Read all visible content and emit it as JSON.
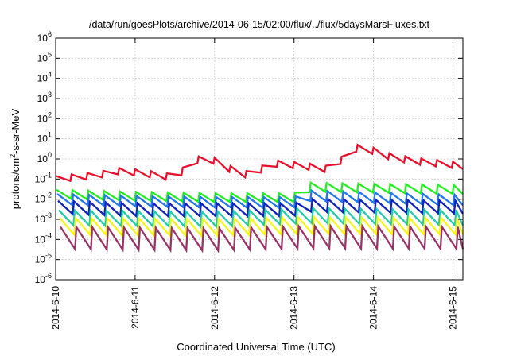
{
  "chart_data": {
    "type": "line",
    "title": "/data/run/goesPlots/archive/2014-06-15/02:00/flux/../flux/5daysMarsFluxes.txt",
    "xlabel": "Coordinated Universal Time (UTC)",
    "ylabel": {
      "prefix": "protons/cm",
      "exp": "2",
      "suffix": "-s-sr-MeV"
    },
    "x_range": [
      "2014-06-10",
      "2014-06-15 03:00"
    ],
    "x_ticks": [
      "2014-6-10",
      "2014-6-11",
      "2014-6-12",
      "2014-6-13",
      "2014-6-14",
      "2014-6-15"
    ],
    "y_scale": "log",
    "y_range": [
      1e-06,
      1000000.0
    ],
    "y_ticks": [
      {
        "base": "10",
        "exp": "-6"
      },
      {
        "base": "10",
        "exp": "-5"
      },
      {
        "base": "10",
        "exp": "-4"
      },
      {
        "base": "10",
        "exp": "-3"
      },
      {
        "base": "10",
        "exp": "-2"
      },
      {
        "base": "10",
        "exp": "-1"
      },
      {
        "base": "10",
        "exp": "0"
      },
      {
        "base": "10",
        "exp": "1"
      },
      {
        "base": "10",
        "exp": "2"
      },
      {
        "base": "10",
        "exp": "3"
      },
      {
        "base": "10",
        "exp": "4"
      },
      {
        "base": "10",
        "exp": "5"
      },
      {
        "base": "10",
        "exp": "6"
      }
    ],
    "grid": true,
    "sawtooth_period_days": 0.2,
    "series": [
      {
        "color": "#e8102c",
        "points": [
          [
            "2014-06-10 00:00",
            0.1
          ],
          [
            "2014-06-10 12:00",
            0.15
          ],
          [
            "2014-06-10 19:00",
            0.25
          ],
          [
            "2014-06-11 02:00",
            0.2
          ],
          [
            "2014-06-11 10:00",
            0.13
          ],
          [
            "2014-06-11 12:00",
            0.15
          ],
          [
            "2014-06-11 14:00",
            0.22
          ],
          [
            "2014-06-11 16:00",
            0.5
          ],
          [
            "2014-06-11 19:00",
            0.9
          ],
          [
            "2014-06-11 21:00",
            1.2
          ],
          [
            "2014-06-12 00:00",
            0.8
          ],
          [
            "2014-06-12 07:00",
            0.2
          ],
          [
            "2014-06-12 12:00",
            0.15
          ],
          [
            "2014-06-12 14:00",
            0.3
          ],
          [
            "2014-06-12 18:00",
            0.6
          ],
          [
            "2014-06-13 00:00",
            0.5
          ],
          [
            "2014-06-13 11:00",
            0.3
          ],
          [
            "2014-06-13 14:00",
            0.8
          ],
          [
            "2014-06-13 19:00",
            3.5
          ],
          [
            "2014-06-14 00:00",
            2.5
          ],
          [
            "2014-06-14 05:00",
            1.3
          ],
          [
            "2014-06-14 12:00",
            0.8
          ],
          [
            "2014-06-15 03:00",
            0.45
          ]
        ]
      },
      {
        "color": "#22ee22",
        "points": [
          [
            "2014-06-10 00:00",
            0.018
          ],
          [
            "2014-06-11 00:00",
            0.014
          ],
          [
            "2014-06-12 00:00",
            0.012
          ],
          [
            "2014-06-13 00:00",
            0.012
          ],
          [
            "2014-06-13 05:00",
            0.04
          ],
          [
            "2014-06-14 00:00",
            0.035
          ],
          [
            "2014-06-15 03:00",
            0.03
          ]
        ]
      },
      {
        "color": "#2277ee",
        "points": [
          [
            "2014-06-10 00:00",
            0.01
          ],
          [
            "2014-06-11 00:00",
            0.008
          ],
          [
            "2014-06-12 00:00",
            0.007
          ],
          [
            "2014-06-13 00:00",
            0.007
          ],
          [
            "2014-06-13 05:00",
            0.015
          ],
          [
            "2014-06-14 00:00",
            0.012
          ],
          [
            "2014-06-15 03:00",
            0.009
          ]
        ]
      },
      {
        "color": "#1122bb",
        "points": [
          [
            "2014-06-10 00:00",
            0.004
          ],
          [
            "2014-06-11 00:00",
            0.003
          ],
          [
            "2014-06-12 00:00",
            0.003
          ],
          [
            "2014-06-13 00:00",
            0.003
          ],
          [
            "2014-06-13 05:00",
            0.005
          ],
          [
            "2014-06-14 00:00",
            0.0045
          ],
          [
            "2014-06-15 03:00",
            0.004
          ]
        ]
      },
      {
        "color": "#22ccaa",
        "points": [
          [
            "2014-06-10 00:00",
            0.0012
          ],
          [
            "2014-06-12 00:00",
            0.001
          ],
          [
            "2014-06-13 05:00",
            0.0015
          ],
          [
            "2014-06-15 03:00",
            0.0012
          ]
        ]
      },
      {
        "color": "#f5f51a",
        "points": [
          [
            "2014-06-10 00:00",
            0.00045
          ],
          [
            "2014-06-12 00:00",
            0.0004
          ],
          [
            "2014-06-13 05:00",
            0.0005
          ],
          [
            "2014-06-15 03:00",
            0.00045
          ]
        ]
      },
      {
        "color": "#993366",
        "points": [
          [
            "2014-06-10 00:00",
            0.00012
          ],
          [
            "2014-06-12 00:00",
            0.0001
          ],
          [
            "2014-06-13 05:00",
            0.00013
          ],
          [
            "2014-06-15 03:00",
            0.00012
          ]
        ]
      }
    ]
  }
}
